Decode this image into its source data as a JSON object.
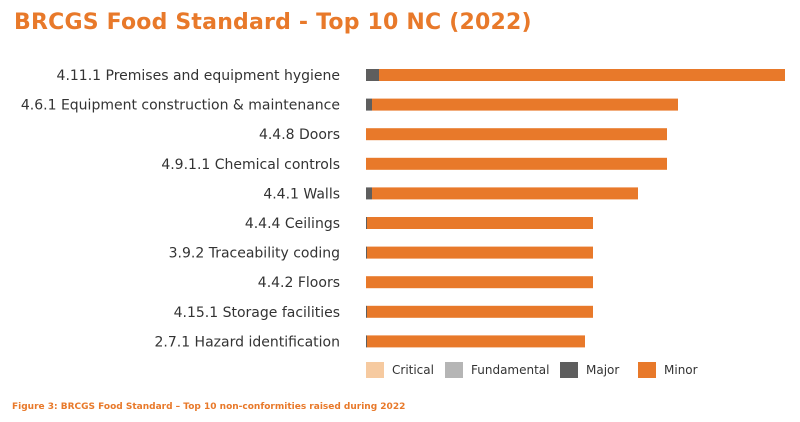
{
  "chart_data": {
    "type": "bar",
    "orientation": "horizontal",
    "stacked": true,
    "title": "BRCGS Food Standard - Top 10 NC (2022)",
    "caption": "Figure 3: BRCGS Food Standard – Top 10 non-conformities raised during 2022",
    "categories": [
      "4.11.1 Premises and equipment hygiene",
      "4.6.1 Equipment construction & maintenance",
      "4.4.8 Doors",
      "4.9.1.1 Chemical controls",
      "4.4.1 Walls",
      "4.4.4 Ceilings",
      "3.9.2 Traceability coding",
      "4.4.2 Floors",
      "4.15.1 Storage facilities",
      "2.7.1 Hazard identification"
    ],
    "series": [
      {
        "name": "Critical",
        "color": "#f6caa0",
        "values": [
          0,
          0,
          0,
          0,
          0,
          0,
          0,
          0,
          0,
          0
        ]
      },
      {
        "name": "Fundamental",
        "color": "#b5b5b5",
        "values": [
          0,
          0,
          0,
          0,
          0,
          0,
          0,
          0,
          0,
          0
        ]
      },
      {
        "name": "Major",
        "color": "#5e5e5e",
        "values": [
          13,
          6,
          0,
          0,
          6,
          1,
          1,
          0,
          1,
          1
        ]
      },
      {
        "name": "Minor",
        "color": "#e8792a",
        "values": [
          406,
          306,
          301,
          301,
          266,
          226,
          226,
          227,
          226,
          218
        ]
      }
    ],
    "xlim": [
      0,
      420
    ],
    "grid": false,
    "legend_position": "bottom"
  }
}
